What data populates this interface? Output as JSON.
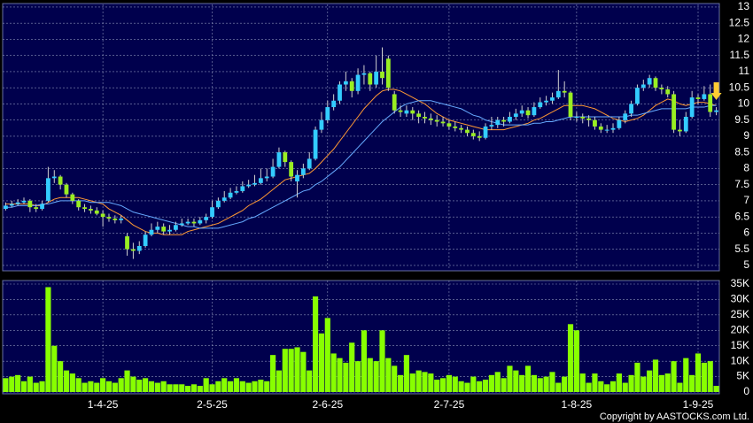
{
  "chart_data": [
    {
      "type": "candlestick",
      "up_color": "#33ccff",
      "down_color": "#99ee22",
      "wick_color": "#d0d0d0",
      "ylim": [
        4.86,
        13.08
      ],
      "yticks": [
        5,
        5.5,
        6,
        6.5,
        7,
        7.5,
        8,
        8.5,
        9,
        9.5,
        10,
        10.5,
        11,
        11.5,
        12,
        12.5,
        13
      ],
      "grid": true,
      "open": [
        6.75,
        6.85,
        6.9,
        6.95,
        7.0,
        6.8,
        6.75,
        7.0,
        7.7,
        7.75,
        7.5,
        7.2,
        7.0,
        6.8,
        6.75,
        6.7,
        6.6,
        6.5,
        6.45,
        6.4,
        5.9,
        5.5,
        5.45,
        5.6,
        5.95,
        6.1,
        6.2,
        6.05,
        6.1,
        6.25,
        6.3,
        6.35,
        6.3,
        6.4,
        6.5,
        6.8,
        7.0,
        7.1,
        7.25,
        7.3,
        7.45,
        7.5,
        7.55,
        7.7,
        7.75,
        8.05,
        8.5,
        8.2,
        7.6,
        7.8,
        8.0,
        8.3,
        9.2,
        9.5,
        9.9,
        10.1,
        10.6,
        10.7,
        10.4,
        10.9,
        10.95,
        10.6,
        11.0,
        11.4,
        10.3,
        9.8,
        9.7,
        9.8,
        9.7,
        9.6,
        9.55,
        9.5,
        9.45,
        9.4,
        9.3,
        9.25,
        9.2,
        9.1,
        9.0,
        8.95,
        9.3,
        9.35,
        9.5,
        9.45,
        9.6,
        9.7,
        9.8,
        9.65,
        9.9,
        10.05,
        10.1,
        10.2,
        10.4,
        10.35,
        9.6,
        9.6,
        9.55,
        9.5,
        9.3,
        9.2,
        9.2,
        9.25,
        9.5,
        9.7,
        10.0,
        10.5,
        10.6,
        10.8,
        10.5,
        10.45,
        10.3,
        9.2,
        9.15,
        9.6,
        10.2,
        10.15,
        10.3,
        9.75
      ],
      "high": [
        6.95,
        7.0,
        7.05,
        7.1,
        7.05,
        6.9,
        7.0,
        8.05,
        7.95,
        7.8,
        7.55,
        7.25,
        7.05,
        6.9,
        6.85,
        6.8,
        6.7,
        6.6,
        6.55,
        6.55,
        6.0,
        5.7,
        5.75,
        6.05,
        6.3,
        6.35,
        6.3,
        6.25,
        6.35,
        6.45,
        6.45,
        6.45,
        6.5,
        6.6,
        7.0,
        7.1,
        7.3,
        7.4,
        7.45,
        7.6,
        7.65,
        7.8,
        8.0,
        8.0,
        8.3,
        8.65,
        8.55,
        8.25,
        7.95,
        8.15,
        8.5,
        9.3,
        9.75,
        10.1,
        10.3,
        10.7,
        11.0,
        10.8,
        11.1,
        11.2,
        11.0,
        11.5,
        11.75,
        11.5,
        10.4,
        9.95,
        9.95,
        9.9,
        9.8,
        9.75,
        9.7,
        9.65,
        9.6,
        9.5,
        9.45,
        9.35,
        9.3,
        9.2,
        9.15,
        9.4,
        9.6,
        9.6,
        9.6,
        9.75,
        9.85,
        9.95,
        9.9,
        10.05,
        10.2,
        10.25,
        10.35,
        11.05,
        10.7,
        10.4,
        9.75,
        9.7,
        9.65,
        9.6,
        9.4,
        9.35,
        9.4,
        9.6,
        9.8,
        10.1,
        10.6,
        10.75,
        10.9,
        10.85,
        10.6,
        10.55,
        10.4,
        9.5,
        9.75,
        10.4,
        10.3,
        10.55,
        10.6,
        9.9
      ],
      "low": [
        6.7,
        6.8,
        6.85,
        6.9,
        6.65,
        6.65,
        6.7,
        6.95,
        7.55,
        7.35,
        7.1,
        6.9,
        6.7,
        6.65,
        6.6,
        6.55,
        6.2,
        6.35,
        6.3,
        6.3,
        5.3,
        5.2,
        5.35,
        5.55,
        5.9,
        6.0,
        5.95,
        5.95,
        6.05,
        6.2,
        6.25,
        6.2,
        6.25,
        6.3,
        6.45,
        6.75,
        6.95,
        7.05,
        7.2,
        7.25,
        7.4,
        7.45,
        7.5,
        7.6,
        7.7,
        8.0,
        8.05,
        7.6,
        7.1,
        7.7,
        7.95,
        8.25,
        9.1,
        9.4,
        9.8,
        10.0,
        10.4,
        10.2,
        10.3,
        10.6,
        10.4,
        10.5,
        10.6,
        10.4,
        9.7,
        9.6,
        9.6,
        9.5,
        9.4,
        9.4,
        9.35,
        9.3,
        9.3,
        9.2,
        9.15,
        9.1,
        9.0,
        8.9,
        8.85,
        8.9,
        9.2,
        9.25,
        9.3,
        9.4,
        9.5,
        9.6,
        9.55,
        9.6,
        9.85,
        9.95,
        10.0,
        10.15,
        10.2,
        9.5,
        9.45,
        9.4,
        9.3,
        9.2,
        9.1,
        9.1,
        9.1,
        9.2,
        9.4,
        9.6,
        9.95,
        10.4,
        10.5,
        10.4,
        10.3,
        10.2,
        9.1,
        9.0,
        9.1,
        9.55,
        10.0,
        10.1,
        9.6,
        9.65
      ],
      "close": [
        6.85,
        6.9,
        6.95,
        7.0,
        6.8,
        6.75,
        6.9,
        7.7,
        7.75,
        7.5,
        7.2,
        7.0,
        6.8,
        6.75,
        6.7,
        6.6,
        6.5,
        6.45,
        6.4,
        6.45,
        5.5,
        5.45,
        5.6,
        5.95,
        6.1,
        6.2,
        6.05,
        6.1,
        6.25,
        6.3,
        6.35,
        6.3,
        6.4,
        6.5,
        6.8,
        7.0,
        7.1,
        7.25,
        7.3,
        7.45,
        7.5,
        7.55,
        7.7,
        7.75,
        8.05,
        8.5,
        8.2,
        7.75,
        7.8,
        8.0,
        8.3,
        9.2,
        9.5,
        9.9,
        10.1,
        10.6,
        10.7,
        10.4,
        10.9,
        10.95,
        10.6,
        11.0,
        10.8,
        10.5,
        9.8,
        9.75,
        9.8,
        9.7,
        9.6,
        9.55,
        9.5,
        9.45,
        9.4,
        9.3,
        9.25,
        9.2,
        9.1,
        9.0,
        8.95,
        9.3,
        9.35,
        9.5,
        9.45,
        9.6,
        9.7,
        9.8,
        9.65,
        9.9,
        10.05,
        10.1,
        10.2,
        10.4,
        10.35,
        9.6,
        9.6,
        9.55,
        9.5,
        9.3,
        9.2,
        9.2,
        9.25,
        9.5,
        9.7,
        10.0,
        10.5,
        10.6,
        10.8,
        10.5,
        10.45,
        10.3,
        9.2,
        9.15,
        9.6,
        10.2,
        10.15,
        10.3,
        9.75,
        9.8
      ],
      "ma_lines": [
        {
          "color": "#ff9933",
          "values": [
            6.9,
            6.9,
            6.9,
            6.9,
            6.9,
            6.85,
            6.85,
            6.95,
            7.05,
            7.1,
            7.1,
            7.1,
            7.1,
            7.05,
            7.0,
            6.95,
            6.9,
            6.75,
            6.65,
            6.55,
            6.4,
            6.25,
            6.15,
            6.05,
            6.0,
            6.0,
            5.95,
            5.95,
            5.95,
            5.95,
            6.05,
            6.1,
            6.15,
            6.2,
            6.25,
            6.3,
            6.4,
            6.5,
            6.6,
            6.7,
            6.85,
            6.95,
            7.05,
            7.2,
            7.35,
            7.5,
            7.65,
            7.7,
            7.75,
            7.8,
            7.85,
            8.0,
            8.2,
            8.4,
            8.6,
            8.85,
            9.1,
            9.35,
            9.6,
            9.85,
            10.05,
            10.25,
            10.4,
            10.45,
            10.45,
            10.4,
            10.3,
            10.2,
            10.1,
            10.0,
            9.85,
            9.7,
            9.6,
            9.5,
            9.45,
            9.4,
            9.35,
            9.3,
            9.25,
            9.2,
            9.2,
            9.2,
            9.2,
            9.25,
            9.3,
            9.35,
            9.4,
            9.5,
            9.55,
            9.65,
            9.75,
            9.85,
            9.95,
            9.95,
            9.95,
            9.95,
            9.9,
            9.85,
            9.75,
            9.65,
            9.55,
            9.5,
            9.45,
            9.5,
            9.55,
            9.65,
            9.8,
            9.95,
            10.05,
            10.15,
            10.1,
            10.0,
            9.95,
            10.0,
            10.05,
            10.05,
            10.0,
            9.95
          ]
        },
        {
          "color": "#66aaff",
          "values": [
            6.8,
            6.8,
            6.85,
            6.85,
            6.85,
            6.85,
            6.9,
            6.9,
            6.95,
            7.0,
            7.0,
            7.0,
            7.0,
            7.0,
            6.95,
            6.95,
            6.95,
            6.95,
            6.9,
            6.85,
            6.75,
            6.65,
            6.6,
            6.55,
            6.5,
            6.45,
            6.4,
            6.35,
            6.3,
            6.25,
            6.2,
            6.2,
            6.15,
            6.15,
            6.15,
            6.15,
            6.2,
            6.25,
            6.3,
            6.35,
            6.45,
            6.5,
            6.6,
            6.7,
            6.8,
            6.9,
            7.0,
            7.1,
            7.2,
            7.3,
            7.35,
            7.5,
            7.6,
            7.75,
            7.9,
            8.05,
            8.25,
            8.45,
            8.65,
            8.85,
            9.05,
            9.25,
            9.45,
            9.6,
            9.75,
            9.9,
            10.0,
            10.05,
            10.1,
            10.1,
            10.1,
            10.05,
            10.0,
            9.95,
            9.9,
            9.85,
            9.75,
            9.65,
            9.6,
            9.5,
            9.45,
            9.4,
            9.35,
            9.35,
            9.35,
            9.35,
            9.35,
            9.4,
            9.4,
            9.45,
            9.45,
            9.5,
            9.55,
            9.6,
            9.6,
            9.6,
            9.6,
            9.6,
            9.6,
            9.6,
            9.6,
            9.6,
            9.6,
            9.65,
            9.65,
            9.7,
            9.75,
            9.8,
            9.85,
            9.85,
            9.85,
            9.85,
            9.85,
            9.9,
            9.9,
            9.9,
            9.95,
            9.95
          ]
        }
      ]
    },
    {
      "type": "bar",
      "color": "#88ff00",
      "ylim": [
        0,
        35000
      ],
      "yticks": [
        0,
        {
          "value": 5000,
          "label": "5K"
        },
        {
          "value": 10000,
          "label": "10K"
        },
        {
          "value": 15000,
          "label": "15K"
        },
        {
          "value": 20000,
          "label": "20K"
        },
        {
          "value": 25000,
          "label": "25K"
        },
        {
          "value": 30000,
          "label": "30K"
        },
        {
          "value": 35000,
          "label": "35K"
        }
      ],
      "grid": true,
      "categories": [
        null,
        null,
        null,
        null,
        null,
        null,
        null,
        null,
        null,
        null,
        null,
        null,
        null,
        null,
        null,
        null,
        "1-4-25",
        null,
        null,
        null,
        null,
        null,
        null,
        null,
        null,
        null,
        null,
        null,
        null,
        null,
        null,
        null,
        null,
        null,
        "2-5-25",
        null,
        null,
        null,
        null,
        null,
        null,
        null,
        null,
        null,
        null,
        null,
        null,
        null,
        null,
        null,
        null,
        null,
        null,
        "2-6-25",
        null,
        null,
        null,
        null,
        null,
        null,
        null,
        null,
        null,
        null,
        null,
        null,
        null,
        null,
        null,
        null,
        null,
        null,
        null,
        "2-7-25",
        null,
        null,
        null,
        null,
        null,
        null,
        null,
        null,
        null,
        null,
        null,
        null,
        null,
        null,
        null,
        null,
        null,
        null,
        null,
        null,
        "1-8-25",
        null,
        null,
        null,
        null,
        null,
        null,
        null,
        null,
        null,
        null,
        null,
        null,
        null,
        null,
        null,
        null,
        null,
        null,
        null,
        "1-9-25",
        null,
        null,
        null
      ],
      "values": [
        4500,
        5000,
        5500,
        3500,
        5000,
        3000,
        3500,
        34000,
        15000,
        10000,
        7000,
        6000,
        4500,
        3000,
        3500,
        3000,
        4500,
        3500,
        3000,
        4500,
        7000,
        5000,
        4000,
        4500,
        3500,
        3000,
        3500,
        2500,
        2500,
        2500,
        2000,
        2500,
        2000,
        4500,
        2500,
        3500,
        4500,
        3500,
        4500,
        3500,
        3000,
        3500,
        4000,
        3500,
        12000,
        7000,
        14000,
        14000,
        14500,
        13000,
        7000,
        31000,
        19000,
        24000,
        12500,
        11000,
        9500,
        16000,
        10000,
        20000,
        11000,
        10000,
        20000,
        11000,
        8500,
        5500,
        12000,
        6000,
        7000,
        6500,
        6000,
        4000,
        4500,
        5500,
        5000,
        3500,
        3000,
        5000,
        3500,
        4000,
        5500,
        6500,
        4500,
        8500,
        7000,
        5500,
        8500,
        5500,
        4500,
        5000,
        6500,
        3000,
        5000,
        22000,
        20000,
        6000,
        3000,
        6000,
        3500,
        2500,
        3500,
        6000,
        3000,
        5500,
        9500,
        5000,
        7000,
        10500,
        5500,
        6000,
        10000,
        3000,
        11000,
        5500,
        12500,
        9500,
        10000,
        2000
      ]
    }
  ],
  "copyright": "Copyright by AASTOCKS.com Ltd."
}
